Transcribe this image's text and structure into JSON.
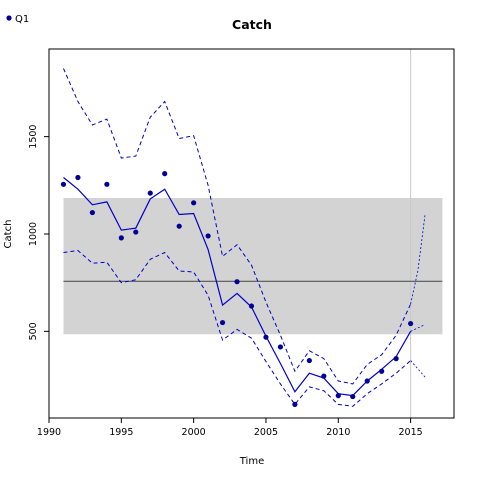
{
  "chart_data": {
    "type": "line",
    "title": "Catch",
    "xlabel": "Time",
    "ylabel": "Catch",
    "xlim": [
      1990,
      2018
    ],
    "ylim": [
      55,
      1950
    ],
    "xticks": [
      1990,
      1995,
      2000,
      2005,
      2010,
      2015
    ],
    "yticks": [
      500,
      1000,
      1500
    ],
    "legend": {
      "position": "top-left",
      "entries": [
        "Q1"
      ]
    },
    "colors": {
      "series": "#0000cc",
      "points": "#000099",
      "band": "#d3d3d3",
      "mean_line": "#555555",
      "vline": "#c8c8c8"
    },
    "reference_band": {
      "x": [
        1991,
        2017.2
      ],
      "y": [
        485,
        1185
      ]
    },
    "reference_line": {
      "x": [
        1991,
        2017.2
      ],
      "y": 757
    },
    "reference_vline": 2015,
    "observed": {
      "name": "Q1",
      "x": [
        1991,
        1992,
        1993,
        1994,
        1995,
        1996,
        1997,
        1998,
        1999,
        2000,
        2001,
        2002,
        2003,
        2004,
        2005,
        2006,
        2007,
        2008,
        2009,
        2010,
        2011,
        2012,
        2013,
        2014,
        2015
      ],
      "y": [
        1255,
        1290,
        1110,
        1255,
        980,
        1010,
        1210,
        1310,
        1040,
        1160,
        990,
        545,
        755,
        630,
        470,
        420,
        125,
        350,
        270,
        170,
        165,
        245,
        295,
        360,
        540
      ]
    },
    "fit": {
      "x": [
        1991,
        1992,
        1993,
        1994,
        1995,
        1996,
        1997,
        1998,
        1999,
        2000,
        2001,
        2002,
        2003,
        2004,
        2005,
        2006,
        2007,
        2008,
        2009,
        2010,
        2011,
        2012,
        2013,
        2014,
        2015
      ],
      "y": [
        1290,
        1230,
        1150,
        1165,
        1020,
        1030,
        1180,
        1230,
        1100,
        1105,
        920,
        635,
        695,
        625,
        475,
        335,
        190,
        285,
        260,
        180,
        170,
        245,
        305,
        370,
        500
      ]
    },
    "upper": {
      "x": [
        1991,
        1992,
        1993,
        1994,
        1995,
        1996,
        1997,
        1998,
        1999,
        2000,
        2001,
        2002,
        2003,
        2004,
        2005,
        2006,
        2007,
        2008,
        2009,
        2010,
        2011,
        2012,
        2013,
        2014,
        2015
      ],
      "y": [
        1850,
        1680,
        1560,
        1590,
        1390,
        1400,
        1600,
        1680,
        1490,
        1505,
        1250,
        885,
        945,
        840,
        650,
        480,
        295,
        400,
        360,
        245,
        230,
        330,
        380,
        480,
        640
      ]
    },
    "lower": {
      "x": [
        1991,
        1992,
        1993,
        1994,
        1995,
        1996,
        1997,
        1998,
        1999,
        2000,
        2001,
        2002,
        2003,
        2004,
        2005,
        2006,
        2007,
        2008,
        2009,
        2010,
        2011,
        2012,
        2013,
        2014,
        2015
      ],
      "y": [
        905,
        915,
        850,
        855,
        750,
        765,
        870,
        905,
        810,
        805,
        685,
        455,
        510,
        465,
        345,
        230,
        125,
        215,
        195,
        125,
        115,
        180,
        230,
        285,
        350
      ]
    },
    "projection_fit": {
      "x": [
        2015,
        2016
      ],
      "y": [
        500,
        535
      ]
    },
    "projection_upper": {
      "x": [
        2015,
        2015.5,
        2016
      ],
      "y": [
        640,
        810,
        1100
      ]
    },
    "projection_lower": {
      "x": [
        2015,
        2016
      ],
      "y": [
        350,
        265
      ]
    }
  }
}
